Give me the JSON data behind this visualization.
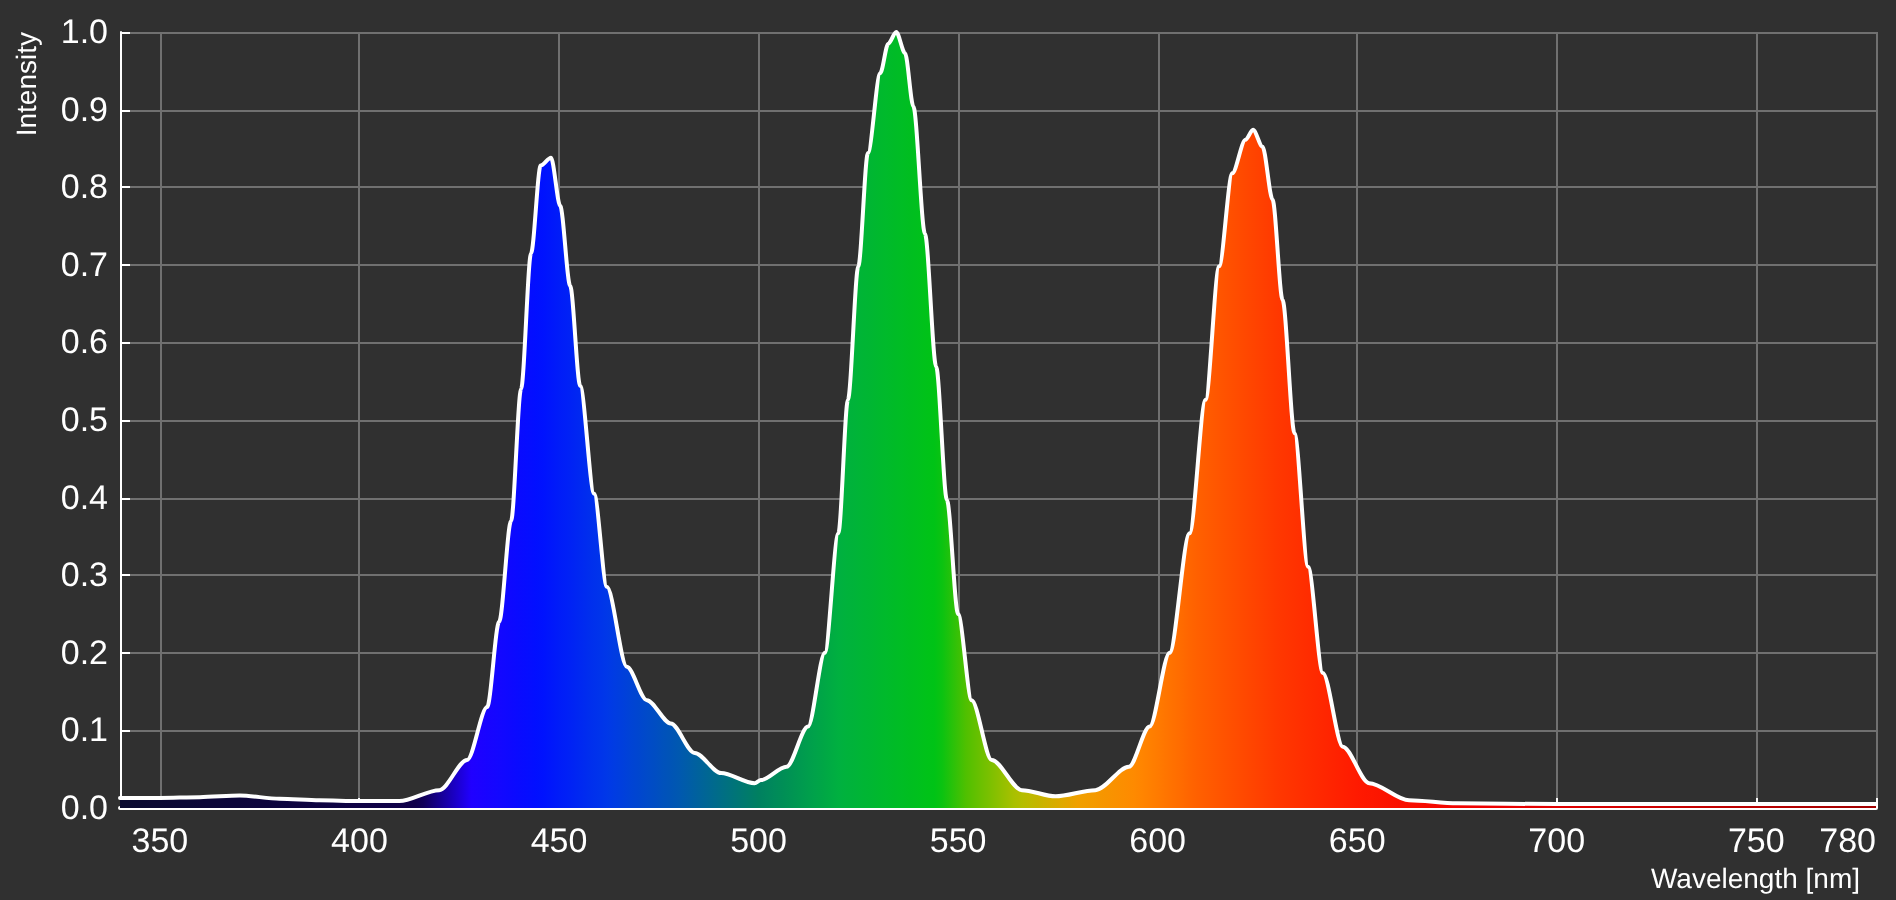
{
  "chart_data": {
    "type": "area",
    "xlabel": "Wavelength [nm]",
    "ylabel": "Intensity",
    "x": [
      340,
      350,
      360,
      370,
      380,
      390,
      400,
      410,
      420,
      427,
      432,
      435,
      438,
      440.5,
      443,
      445.4,
      448,
      450.3,
      452.8,
      455.3,
      458.8,
      462,
      467,
      472,
      478,
      484,
      490.6,
      499,
      500.6,
      507,
      512.4,
      516.6,
      520,
      522.4,
      525,
      527.4,
      530.5,
      532.5,
      534.5,
      536.7,
      538.8,
      541.7,
      544.5,
      547.2,
      550,
      553.4,
      558.4,
      566,
      574.4,
      584.4,
      592.8,
      598,
      603,
      608,
      612,
      615.4,
      618.7,
      622,
      623.9,
      626.3,
      628.8,
      631.3,
      634.3,
      637.7,
      641.4,
      646.4,
      653,
      663,
      675,
      700,
      740,
      780
    ],
    "series": [
      {
        "color": "#ffffff",
        "values": [
          0.013,
          0.013,
          0.014,
          0.016,
          0.012,
          0.01,
          0.009,
          0.009,
          0.023,
          0.062,
          0.13,
          0.24,
          0.37,
          0.54,
          0.715,
          0.828,
          0.838,
          0.776,
          0.673,
          0.544,
          0.405,
          0.285,
          0.182,
          0.139,
          0.109,
          0.071,
          0.045,
          0.032,
          0.036,
          0.053,
          0.105,
          0.2,
          0.354,
          0.526,
          0.698,
          0.844,
          0.947,
          0.985,
          1.0,
          0.973,
          0.904,
          0.74,
          0.569,
          0.397,
          0.25,
          0.139,
          0.062,
          0.023,
          0.015,
          0.023,
          0.053,
          0.105,
          0.2,
          0.354,
          0.526,
          0.698,
          0.818,
          0.861,
          0.874,
          0.852,
          0.784,
          0.655,
          0.483,
          0.311,
          0.174,
          0.079,
          0.032,
          0.01,
          0.006,
          0.005,
          0.005,
          0.005
        ]
      }
    ],
    "xlim": [
      340,
      780
    ],
    "xticks": [
      350,
      400,
      450,
      500,
      550,
      600,
      650,
      700,
      750,
      780
    ],
    "ylim": [
      0,
      1
    ],
    "yticks": [
      {
        "value": 0,
        "label": "0.0"
      },
      0.1,
      0.2,
      0.3,
      0.4,
      0.5,
      0.6,
      0.7,
      0.8,
      0.9,
      {
        "value": 1,
        "label": "1.0"
      }
    ],
    "grid": true,
    "marker": "none",
    "line_style": "solid"
  }
}
